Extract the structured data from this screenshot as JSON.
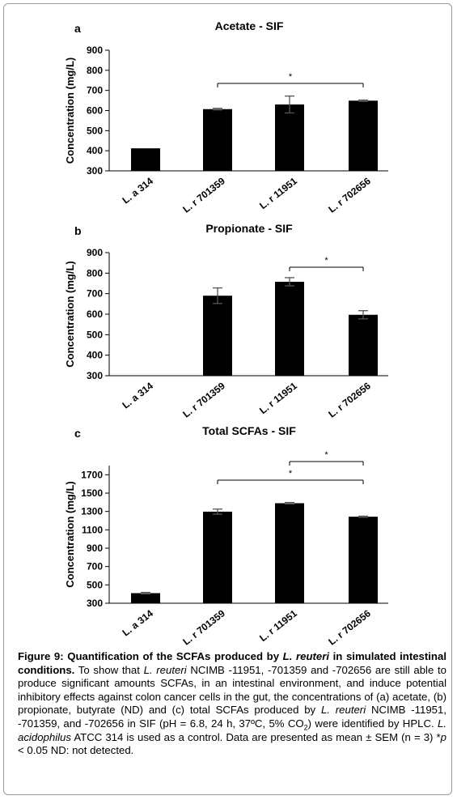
{
  "figure": {
    "charts": [
      {
        "panel_label": "a",
        "chart_data": {
          "type": "bar",
          "title": "Acetate - SIF",
          "ylabel": "Concentration (mg/L)",
          "xlabel": "",
          "categories": [
            "L. a 314",
            "L. r 701359",
            "L. r 11951",
            "L. r 702656"
          ],
          "values": [
            412,
            607,
            630,
            649
          ],
          "errors": [
            0,
            4,
            42,
            3
          ],
          "ylim": [
            300,
            900
          ],
          "yticks": [
            300,
            400,
            500,
            600,
            700,
            800,
            900
          ],
          "significance": [
            {
              "from": 1,
              "to": 3,
              "label": "*"
            }
          ]
        }
      },
      {
        "panel_label": "b",
        "chart_data": {
          "type": "bar",
          "title": "Propionate - SIF",
          "ylabel": "Concentration (mg/L)",
          "xlabel": "",
          "categories": [
            "L. a 314",
            "L. r 701359",
            "L. r 11951",
            "L. r 702656"
          ],
          "values": [
            null,
            690,
            758,
            597
          ],
          "errors": [
            0,
            38,
            20,
            20
          ],
          "ylim": [
            300,
            900
          ],
          "yticks": [
            300,
            400,
            500,
            600,
            700,
            800,
            900
          ],
          "significance": [
            {
              "from": 2,
              "to": 3,
              "label": "*"
            }
          ]
        }
      },
      {
        "panel_label": "c",
        "chart_data": {
          "type": "bar",
          "title": "Total SCFAs - SIF",
          "ylabel": "Concentration (mg/L)",
          "xlabel": "",
          "categories": [
            "L. a 314",
            "L. r 701359",
            "L. r 11951",
            "L. r 702656"
          ],
          "values": [
            410,
            1298,
            1390,
            1243
          ],
          "errors": [
            8,
            28,
            8,
            6
          ],
          "ylim": [
            300,
            1800
          ],
          "yticks": [
            300,
            500,
            700,
            900,
            1100,
            1300,
            1500,
            1700
          ],
          "significance": [
            {
              "from": 1,
              "to": 3,
              "label": "*"
            },
            {
              "from": 2,
              "to": 3,
              "label": "*"
            }
          ]
        }
      }
    ],
    "caption": {
      "lead_1": "Figure 9: Quantification of the SCFAs produced by ",
      "lead_it": "L. reuteri",
      "lead_2": " in simulated intestinal conditions.",
      "s1": " To show that ",
      "s1_it": "L. reuteri",
      "s2": " NCIMB -11951, -701359 and -702656 are still able to produce significant amounts SCFAs, in an intestinal environment, and induce potential inhibitory effects against colon cancer cells in the gut, the concentrations of (a) acetate, (b) propionate, butyrate (ND) and (c) total SCFAs produced by ",
      "s2_it": "L. reuteri",
      "s3": " NCIMB -11951, -701359, and -702656 in SIF (pH = 6.8, 24 h, 37ºC, 5% CO",
      "s3_sub": "2",
      "s4": ") were identified by HPLC. ",
      "s4_it": "L. acidophilus",
      "s5": " ATCC 314 is used as a control. Data are presented as mean ± SEM (n = 3) *",
      "s5_it": "p",
      "s6": " < 0.05 ND: not detected."
    }
  }
}
